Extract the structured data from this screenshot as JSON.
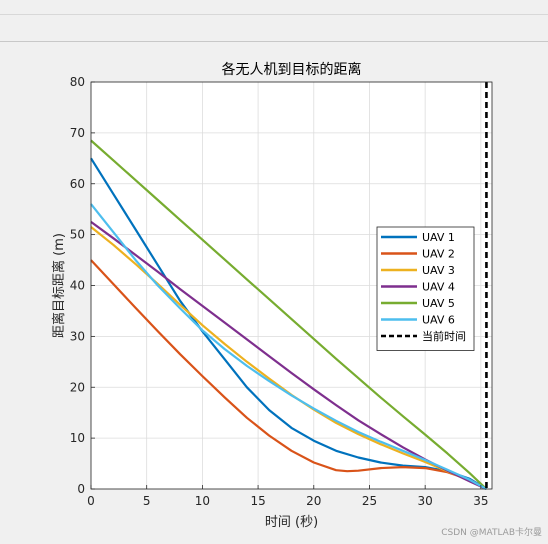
{
  "chart_data": {
    "type": "line",
    "title": "各无人机到目标的距离",
    "xlabel": "时间 (秒)",
    "ylabel": "距离目标距离 (m)",
    "xlim": [
      0,
      36
    ],
    "ylim": [
      0,
      80
    ],
    "xticks": [
      0,
      5,
      10,
      15,
      20,
      25,
      30,
      35
    ],
    "yticks": [
      0,
      10,
      20,
      30,
      40,
      50,
      60,
      70,
      80
    ],
    "grid": true,
    "legend_position": "right",
    "series": [
      {
        "name": "UAV 1",
        "color": "#0072BD",
        "x": [
          0,
          2,
          4,
          6,
          8,
          10,
          12,
          14,
          16,
          18,
          20,
          22,
          24,
          26,
          28,
          30,
          32,
          34,
          35.5
        ],
        "y": [
          65,
          58,
          51,
          44,
          37,
          31,
          25.5,
          20,
          15.5,
          12,
          9.5,
          7.5,
          6.2,
          5.2,
          4.6,
          4.3,
          3.5,
          2,
          0
        ]
      },
      {
        "name": "UAV 2",
        "color": "#D95319",
        "x": [
          0,
          2,
          4,
          6,
          8,
          10,
          12,
          14,
          16,
          18,
          20,
          22,
          23,
          24,
          26,
          28,
          30,
          32,
          34,
          35.5
        ],
        "y": [
          45,
          40.3,
          35.6,
          31,
          26.5,
          22.2,
          18,
          14,
          10.5,
          7.5,
          5.2,
          3.7,
          3.5,
          3.6,
          4.1,
          4.3,
          4.1,
          3.3,
          1.8,
          0
        ]
      },
      {
        "name": "UAV 3",
        "color": "#EDB120",
        "x": [
          0,
          2,
          4,
          6,
          8,
          10,
          12,
          14,
          16,
          18,
          20,
          22,
          24,
          26,
          28,
          30,
          32,
          34,
          35.5
        ],
        "y": [
          51.5,
          48,
          44.2,
          40.3,
          36.2,
          32.2,
          28.5,
          25,
          21.7,
          18.5,
          15.6,
          13,
          10.8,
          8.8,
          7,
          5.3,
          3.5,
          1.6,
          0
        ]
      },
      {
        "name": "UAV 4",
        "color": "#7E2F8E",
        "x": [
          0,
          2,
          4,
          6,
          8,
          10,
          12,
          14,
          16,
          18,
          20,
          22,
          24,
          26,
          28,
          30,
          32,
          34,
          35.5
        ],
        "y": [
          52.5,
          49.3,
          46,
          42.7,
          39.3,
          36,
          32.7,
          29.4,
          26.1,
          22.8,
          19.6,
          16.5,
          13.5,
          10.8,
          8.2,
          5.8,
          3.6,
          1.5,
          0
        ]
      },
      {
        "name": "UAV 5",
        "color": "#77AC30",
        "x": [
          0,
          2,
          4,
          6,
          8,
          10,
          12,
          14,
          16,
          18,
          20,
          22,
          24,
          26,
          28,
          30,
          32,
          34,
          35.5
        ],
        "y": [
          68.5,
          64.6,
          60.7,
          56.8,
          52.9,
          49,
          45.1,
          41.2,
          37.3,
          33.4,
          29.5,
          25.6,
          21.8,
          18,
          14.3,
          10.7,
          7,
          3.1,
          0
        ]
      },
      {
        "name": "UAV 6",
        "color": "#4DBEEE",
        "x": [
          0,
          2,
          4,
          6,
          8,
          10,
          12,
          14,
          16,
          18,
          20,
          22,
          24,
          26,
          28,
          30,
          32,
          34,
          35.5
        ],
        "y": [
          56,
          50.5,
          45,
          40,
          35.5,
          31.2,
          27.5,
          24.2,
          21.2,
          18.4,
          15.8,
          13.4,
          11.2,
          9.3,
          7.5,
          5.7,
          3.8,
          1.8,
          0
        ]
      }
    ],
    "reference_line": {
      "name": "当前时间",
      "x": 35.5,
      "color": "#000000",
      "style": "dashed"
    }
  },
  "watermark": "CSDN @MATLAB卡尔曼"
}
